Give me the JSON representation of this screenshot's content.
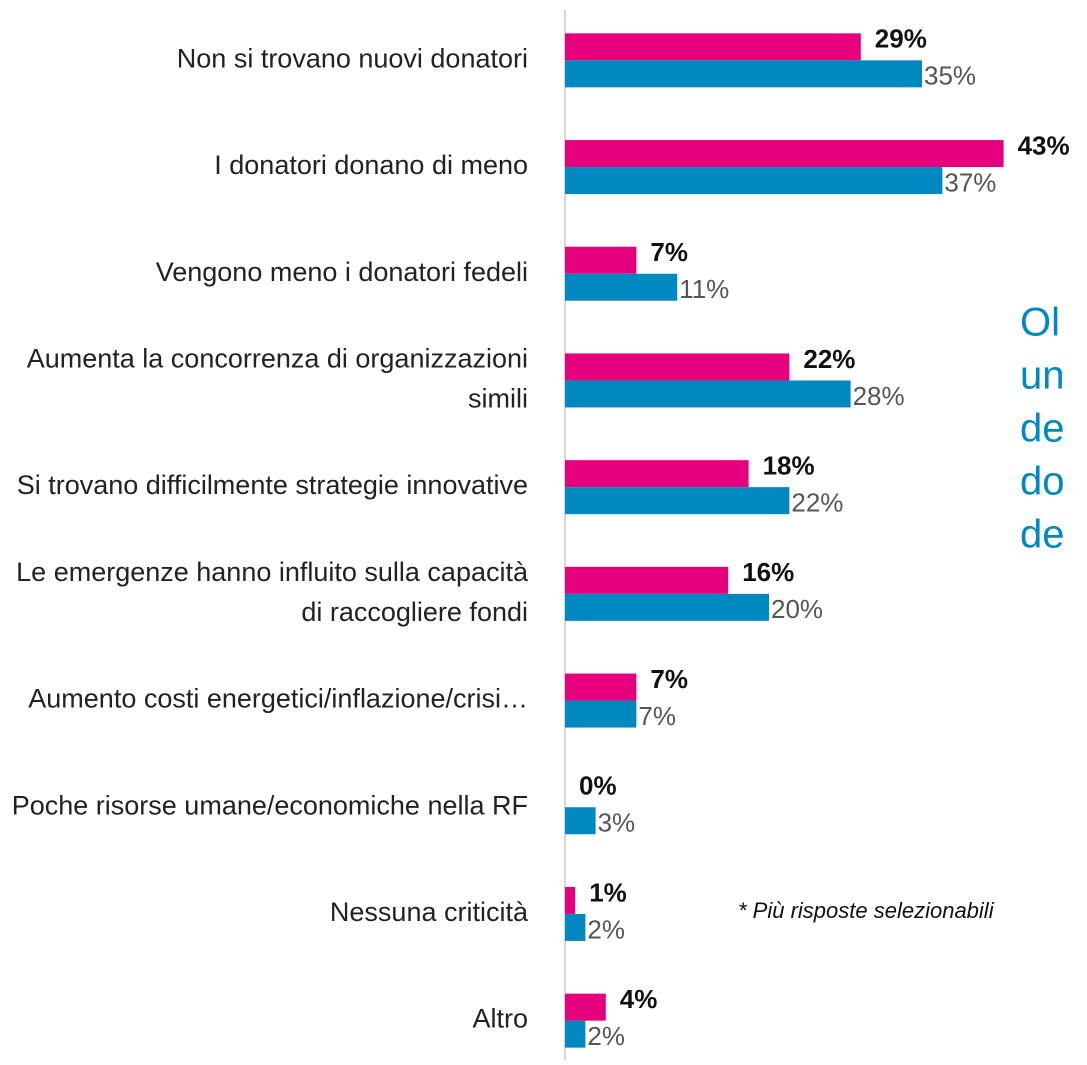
{
  "chart_data": {
    "type": "barh",
    "categories": [
      "Non si trovano nuovi donatori",
      "I donatori donano di meno",
      "Vengono meno i donatori fedeli",
      "Aumenta la concorrenza di organizzazioni simili",
      "Si trovano difficilmente strategie innovative",
      "Le emergenze hanno influito sulla capacità di raccogliere fondi",
      "Aumento costi energetici/inflazione/crisi…",
      "Poche risorse umane/economiche nella RF",
      "Nessuna criticità",
      "Altro"
    ],
    "series": [
      {
        "color": "#e6007e",
        "values": [
          29,
          43,
          7,
          22,
          18,
          16,
          7,
          0,
          1,
          4
        ],
        "value_labels": [
          "29%",
          "43%",
          "7%",
          "22%",
          "18%",
          "16%",
          "7%",
          "0%",
          "1%",
          "4%"
        ]
      },
      {
        "color": "#0089c0",
        "values": [
          35,
          37,
          11,
          28,
          22,
          20,
          7,
          3,
          2,
          2
        ],
        "value_labels": [
          "35%",
          "37%",
          "11%",
          "28%",
          "22%",
          "20%",
          "7%",
          "3%",
          "2%",
          "2%"
        ]
      }
    ],
    "xlim": [
      0,
      50
    ],
    "note": "* Più risposte selezionabili",
    "side_text": [
      "Ol",
      "un",
      "de",
      "do",
      "de"
    ]
  }
}
